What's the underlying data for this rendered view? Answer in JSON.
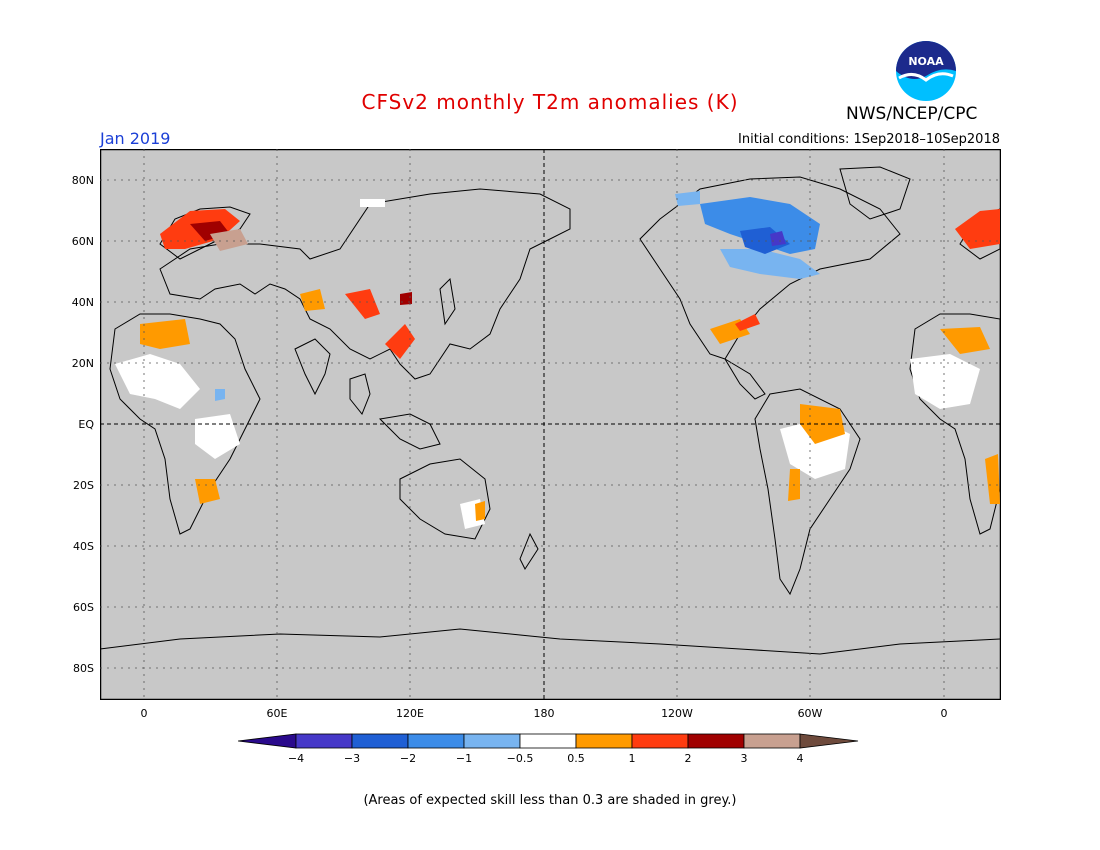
{
  "header": {
    "title": "CFSv2 monthly T2m anomalies (K)",
    "agency": "NWS/NCEP/CPC",
    "logo_text": "NOAA",
    "month": "Jan 2019",
    "initial_conditions": "Initial conditions: 1Sep2018–10Sep2018"
  },
  "map": {
    "projection": "cylindrical equidistant",
    "lon_range": [
      -20,
      340
    ],
    "lat_range": [
      -90,
      90
    ],
    "lat_labels": [
      "80N",
      "60N",
      "40N",
      "20N",
      "EQ",
      "20S",
      "40S",
      "60S",
      "80S"
    ],
    "lon_labels": [
      "0",
      "60E",
      "120E",
      "180",
      "120W",
      "60W",
      "0"
    ],
    "background_color": "#c8c8c8"
  },
  "colorbar": {
    "labels": [
      "−4",
      "−3",
      "−2",
      "−1",
      "−0.5",
      "0.5",
      "1",
      "2",
      "3",
      "4"
    ],
    "colors": [
      "#2a0a8c",
      "#4638c8",
      "#1f5fd4",
      "#3c8ce8",
      "#78b4f0",
      "#ffffff",
      "#ff9a00",
      "#ff3c10",
      "#a00000",
      "#c8a090",
      "#6e4a3c"
    ]
  },
  "footnote": "(Areas of expected skill less than 0.3 are shaded in grey.)"
}
